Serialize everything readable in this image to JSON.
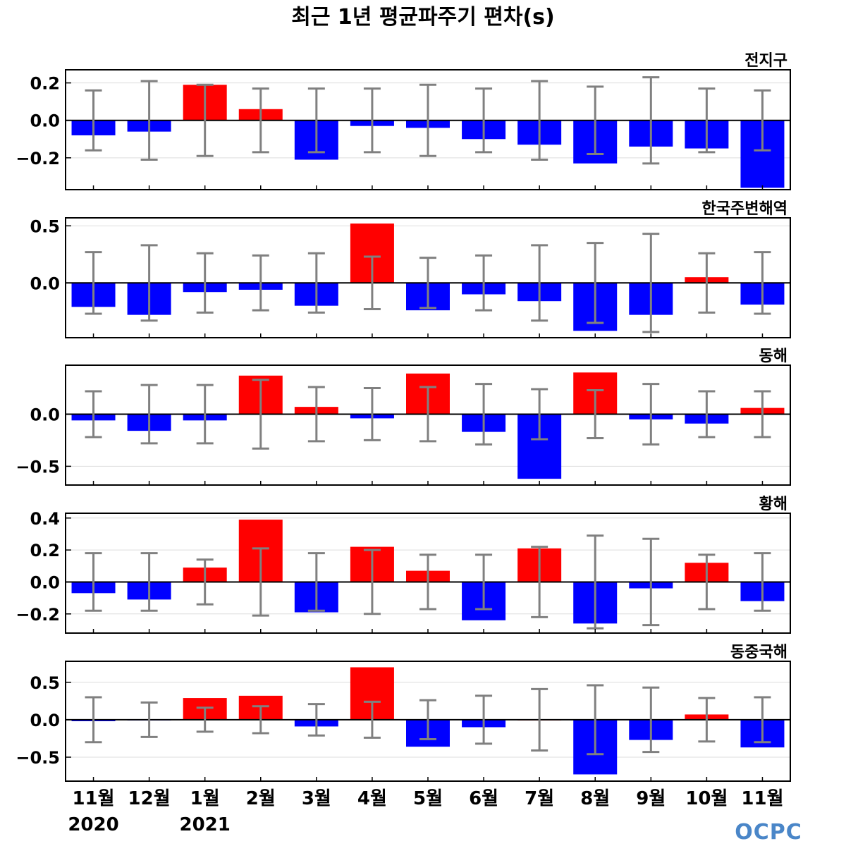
{
  "title": "최근 1년 평균파주기 편차(s)",
  "logo": "OCPC",
  "x_labels": [
    "11월",
    "12월",
    "1월",
    "2월",
    "3월",
    "4월",
    "5월",
    "6월",
    "7월",
    "8월",
    "9월",
    "10월",
    "11월"
  ],
  "year_labels": [
    {
      "text": "2020",
      "index": 0
    },
    {
      "text": "2021",
      "index": 2
    }
  ],
  "colors": {
    "positive": "#ff0000",
    "negative": "#0000ff",
    "error_bar": "#808080",
    "zero_line": "#000000",
    "grid": "#dddddd"
  },
  "chart_data": [
    {
      "type": "bar",
      "region": "전지구",
      "ylim": [
        -0.37,
        0.27
      ],
      "yticks": [
        0.2,
        0.0,
        -0.2
      ],
      "ytick_labels": [
        "0.2",
        "0.0",
        "−0.2"
      ],
      "categories": [
        "11월",
        "12월",
        "1월",
        "2월",
        "3월",
        "4월",
        "5월",
        "6월",
        "7월",
        "8월",
        "9월",
        "10월",
        "11월"
      ],
      "values": [
        -0.08,
        -0.06,
        0.19,
        0.06,
        -0.21,
        -0.03,
        -0.04,
        -0.1,
        -0.13,
        -0.23,
        -0.14,
        -0.15,
        -0.36
      ],
      "error": [
        0.16,
        0.21,
        0.19,
        0.17,
        0.17,
        0.17,
        0.19,
        0.17,
        0.21,
        0.18,
        0.23,
        0.17,
        0.16
      ],
      "grid": true
    },
    {
      "type": "bar",
      "region": "한국주변해역",
      "ylim": [
        -0.48,
        0.57
      ],
      "yticks": [
        0.5,
        0.0
      ],
      "ytick_labels": [
        "0.5",
        "0.0"
      ],
      "categories": [
        "11월",
        "12월",
        "1월",
        "2월",
        "3월",
        "4월",
        "5월",
        "6월",
        "7월",
        "8월",
        "9월",
        "10월",
        "11월"
      ],
      "values": [
        -0.21,
        -0.28,
        -0.08,
        -0.06,
        -0.2,
        0.52,
        -0.24,
        -0.1,
        -0.16,
        -0.42,
        -0.28,
        0.05,
        -0.19
      ],
      "error": [
        0.27,
        0.33,
        0.26,
        0.24,
        0.26,
        0.23,
        0.22,
        0.24,
        0.33,
        0.35,
        0.43,
        0.26,
        0.27
      ],
      "grid": true
    },
    {
      "type": "bar",
      "region": "동해",
      "ylim": [
        -0.68,
        0.47
      ],
      "yticks": [
        0.0,
        -0.5
      ],
      "ytick_labels": [
        "0.0",
        "−0.5"
      ],
      "categories": [
        "11월",
        "12월",
        "1월",
        "2월",
        "3월",
        "4월",
        "5월",
        "6월",
        "7월",
        "8월",
        "9월",
        "10월",
        "11월"
      ],
      "values": [
        -0.06,
        -0.16,
        -0.06,
        0.37,
        0.07,
        -0.04,
        0.39,
        -0.17,
        -0.62,
        0.4,
        -0.05,
        -0.09,
        0.06
      ],
      "error": [
        0.22,
        0.28,
        0.28,
        0.33,
        0.26,
        0.25,
        0.26,
        0.29,
        0.24,
        0.23,
        0.29,
        0.22,
        0.22
      ],
      "grid": true
    },
    {
      "type": "bar",
      "region": "황해",
      "ylim": [
        -0.32,
        0.43
      ],
      "yticks": [
        0.4,
        0.2,
        0.0,
        -0.2
      ],
      "ytick_labels": [
        "0.4",
        "0.2",
        "0.0",
        "−0.2"
      ],
      "categories": [
        "11월",
        "12월",
        "1월",
        "2월",
        "3월",
        "4월",
        "5월",
        "6월",
        "7월",
        "8월",
        "9월",
        "10월",
        "11월"
      ],
      "values": [
        -0.07,
        -0.11,
        0.09,
        0.39,
        -0.19,
        0.22,
        0.07,
        -0.24,
        0.21,
        -0.26,
        -0.04,
        0.12,
        -0.12
      ],
      "error": [
        0.18,
        0.18,
        0.14,
        0.21,
        0.18,
        0.2,
        0.17,
        0.17,
        0.22,
        0.29,
        0.27,
        0.17,
        0.18
      ],
      "grid": true
    },
    {
      "type": "bar",
      "region": "동중국해",
      "ylim": [
        -0.82,
        0.78
      ],
      "yticks": [
        0.5,
        0.0,
        -0.5
      ],
      "ytick_labels": [
        "0.5",
        "0.0",
        "−0.5"
      ],
      "categories": [
        "11월",
        "12월",
        "1월",
        "2월",
        "3월",
        "4월",
        "5월",
        "6월",
        "7월",
        "8월",
        "9월",
        "10월",
        "11월"
      ],
      "values": [
        -0.02,
        -0.01,
        0.29,
        0.32,
        -0.09,
        0.7,
        -0.36,
        -0.1,
        0.0,
        -0.73,
        -0.27,
        0.07,
        -0.37
      ],
      "error": [
        0.3,
        0.23,
        0.16,
        0.18,
        0.21,
        0.24,
        0.26,
        0.32,
        0.41,
        0.46,
        0.43,
        0.29,
        0.3
      ],
      "grid": true
    }
  ]
}
